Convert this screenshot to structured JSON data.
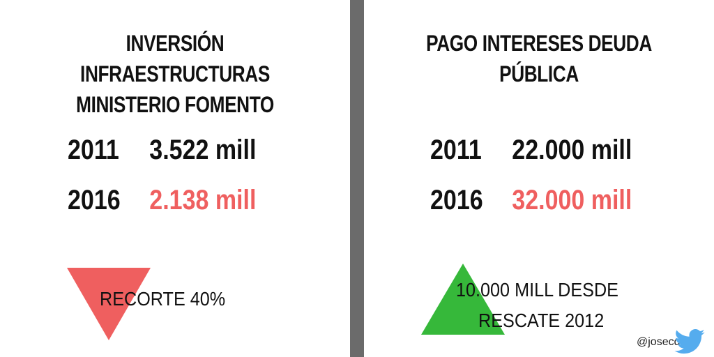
{
  "colors": {
    "red": "#ef5f5f",
    "green": "#36b83a",
    "divider": "#6b6b6b",
    "twitter": "#55acee"
  },
  "left_panel": {
    "title_line1": "INVERSIÓN INFRAESTRUCTURAS",
    "title_line2": "MINISTERIO FOMENTO",
    "rows": [
      {
        "year": "2011",
        "amount": "3.522 mill"
      },
      {
        "year": "2016",
        "amount": "2.138 mill"
      }
    ],
    "indicator": {
      "icon": "down-triangle-icon",
      "label": "RECORTE 40%"
    }
  },
  "right_panel": {
    "title_line1": "PAGO INTERESES DEUDA PÚBLICA",
    "rows": [
      {
        "year": "2011",
        "amount": "22.000 mill"
      },
      {
        "year": "2016",
        "amount": "32.000 mill"
      }
    ],
    "indicator": {
      "icon": "up-triangle-icon",
      "label_line1": "10.000 MILL DESDE",
      "label_line2": "RESCATE 2012"
    }
  },
  "footer": {
    "handle": "@josecdiez",
    "icon": "twitter-bird-icon"
  }
}
